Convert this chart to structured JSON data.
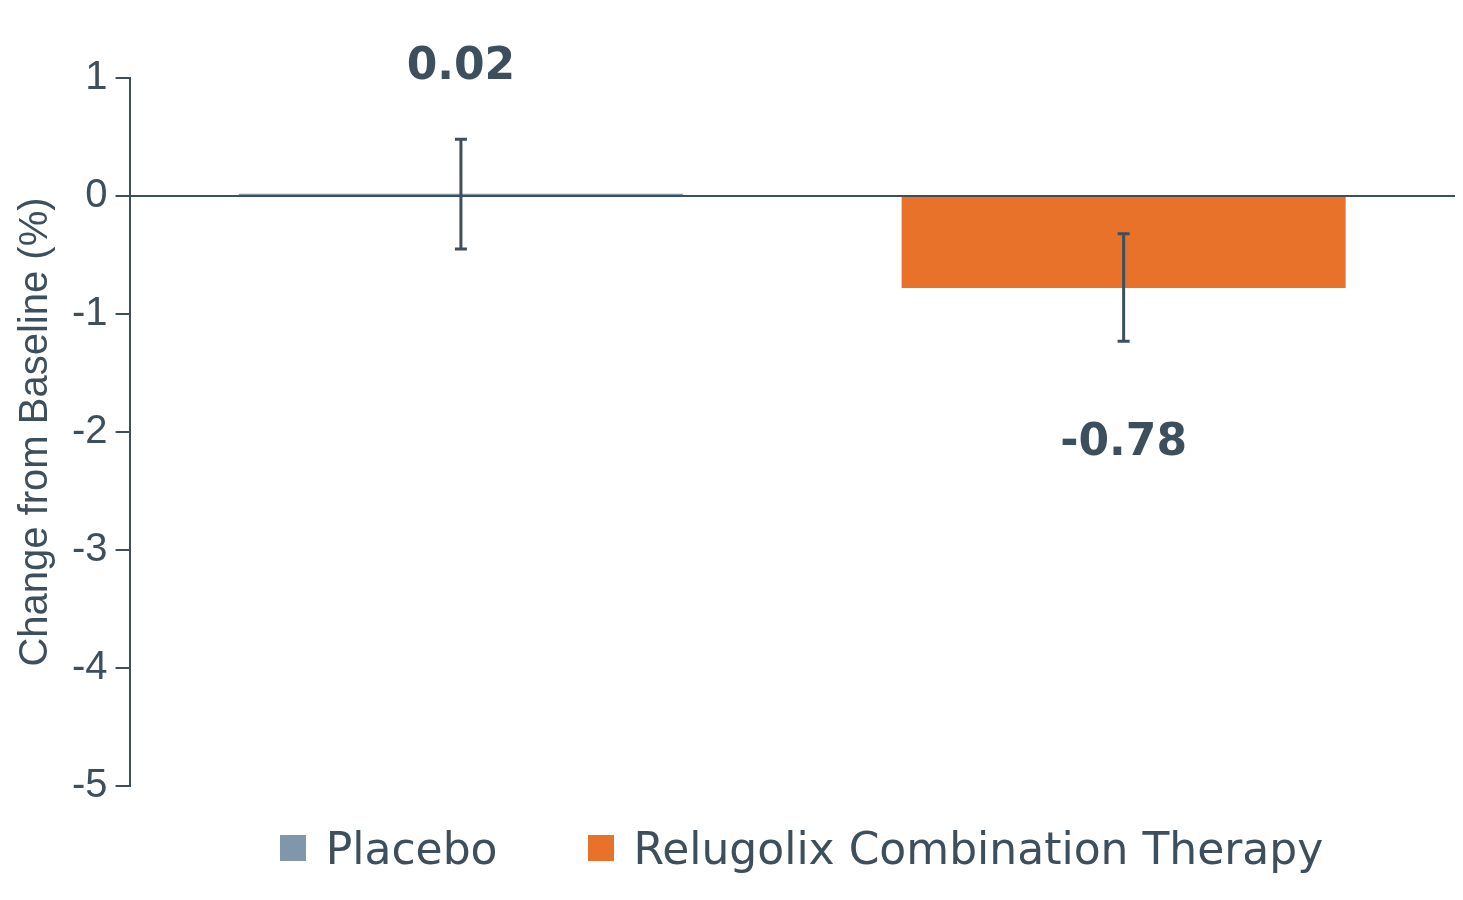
{
  "chart_data": {
    "type": "bar",
    "ylabel": "Change from Baseline (%)",
    "categories": [
      "Placebo",
      "Relugolix Combination Therapy"
    ],
    "values": [
      0.02,
      -0.78
    ],
    "colors": [
      "#7f96ab",
      "#e8722a"
    ],
    "errors": [
      [
        -0.45,
        0.48
      ],
      [
        -1.23,
        -0.32
      ]
    ],
    "tick_labels": "y",
    "ref_lines": [
      {
        "axis": "y",
        "value": 0,
        "color": "#3d4f5c"
      }
    ],
    "ylim": [
      -5,
      1
    ],
    "yticks": [
      -5,
      -4,
      -3,
      -2,
      -1,
      0,
      1
    ],
    "grid": false,
    "data_labels": true
  }
}
